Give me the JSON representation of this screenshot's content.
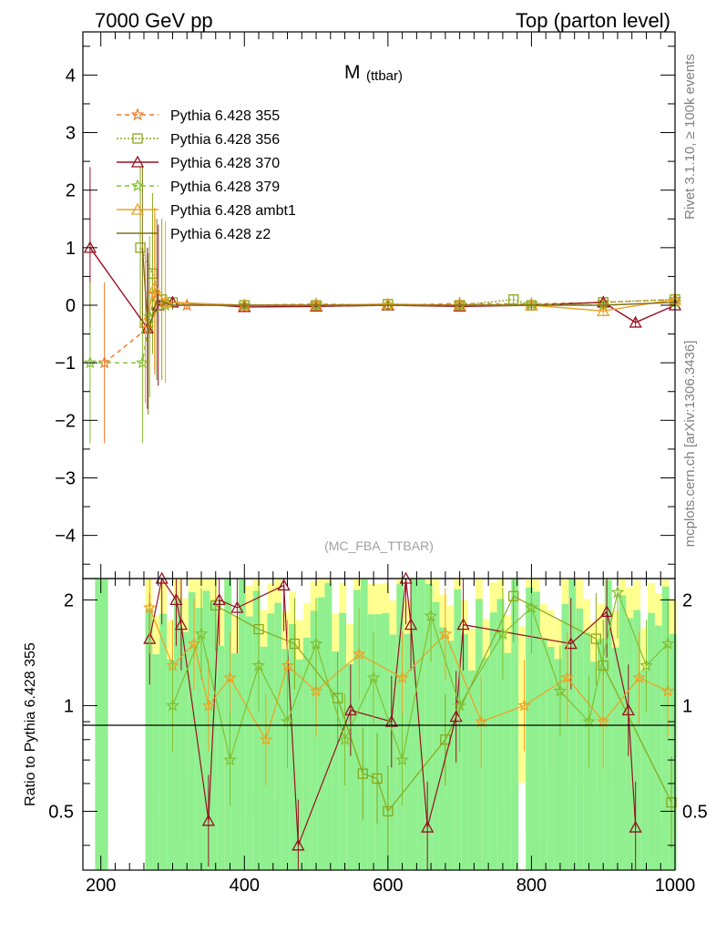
{
  "header": {
    "left": "7000 GeV pp",
    "right": "Top (parton level)"
  },
  "side_text": {
    "upper": "Rivet 3.1.10, ≥ 100k events",
    "lower": "mcplots.cern.ch [arXiv:1306.3436]"
  },
  "chart_data": [
    {
      "type": "line",
      "title_main": "M",
      "title_sub": "(ttbar)",
      "analysis_tag": "(MC_FBA_TTBAR)",
      "xlim": [
        175,
        1000
      ],
      "ylim": [
        -4.75,
        4.75
      ],
      "yticks": [
        -4,
        -3,
        -2,
        -1,
        0,
        1,
        2,
        3,
        4
      ],
      "xticks": [
        200,
        400,
        600,
        800,
        1000
      ],
      "legend_position": "top-left",
      "series": [
        {
          "name": "Pythia 6.428 355",
          "color": "#f07828",
          "dash": "5,4",
          "marker": "star",
          "points": [
            [
              205,
              -1
            ],
            [
              265,
              -0.4
            ],
            [
              275,
              0.2
            ],
            [
              290,
              0.05
            ],
            [
              320,
              0.0
            ],
            [
              400,
              0.0
            ],
            [
              500,
              0.02
            ],
            [
              600,
              0.0
            ],
            [
              700,
              0.03
            ],
            [
              800,
              0.02
            ],
            [
              900,
              0.05
            ],
            [
              1000,
              0.1
            ]
          ]
        },
        {
          "name": "Pythia 6.428 356",
          "color": "#88a818",
          "dash": "2,2",
          "marker": "square",
          "points": [
            [
              255,
              1
            ],
            [
              272,
              0.55
            ],
            [
              285,
              0.1
            ],
            [
              300,
              0.05
            ],
            [
              400,
              0.0
            ],
            [
              500,
              0.0
            ],
            [
              600,
              0.02
            ],
            [
              700,
              0.0
            ],
            [
              775,
              0.1
            ],
            [
              800,
              0.0
            ],
            [
              900,
              0.05
            ],
            [
              1000,
              0.1
            ]
          ]
        },
        {
          "name": "Pythia 6.428 370",
          "color": "#981020",
          "dash": "",
          "marker": "triangle",
          "points": [
            [
              185,
              1
            ],
            [
              265,
              -0.4
            ],
            [
              280,
              0.0
            ],
            [
              300,
              0.05
            ],
            [
              400,
              -0.03
            ],
            [
              500,
              -0.02
            ],
            [
              600,
              0.0
            ],
            [
              700,
              -0.02
            ],
            [
              800,
              0.0
            ],
            [
              900,
              0.05
            ],
            [
              945,
              -0.3
            ],
            [
              1000,
              0.0
            ]
          ]
        },
        {
          "name": "Pythia 6.428 379",
          "color": "#80c030",
          "dash": "5,4",
          "marker": "star",
          "points": [
            [
              185,
              -1
            ],
            [
              258,
              -1
            ],
            [
              268,
              -0.2
            ],
            [
              290,
              0.0
            ],
            [
              400,
              0.0
            ],
            [
              500,
              0.0
            ],
            [
              600,
              0.0
            ],
            [
              700,
              0.0
            ],
            [
              800,
              0.02
            ],
            [
              900,
              0.0
            ],
            [
              1000,
              0.05
            ]
          ]
        },
        {
          "name": "Pythia 6.428 ambt1",
          "color": "#f0a020",
          "dash": "",
          "marker": "triangle",
          "points": [
            [
              262,
              -0.3
            ],
            [
              275,
              0.3
            ],
            [
              290,
              0.05
            ],
            [
              400,
              0.0
            ],
            [
              500,
              0.0
            ],
            [
              600,
              0.02
            ],
            [
              700,
              0.0
            ],
            [
              800,
              0.0
            ],
            [
              900,
              -0.1
            ],
            [
              1000,
              0.1
            ]
          ]
        },
        {
          "name": "Pythia 6.428 z2",
          "color": "#807018",
          "dash": "",
          "marker": "none",
          "points": [
            [
              258,
              1.0
            ],
            [
              266,
              -0.5
            ],
            [
              278,
              0.1
            ],
            [
              300,
              0.0
            ],
            [
              400,
              0.0
            ],
            [
              500,
              0.0
            ],
            [
              600,
              0.0
            ],
            [
              700,
              0.0
            ],
            [
              800,
              0.0
            ],
            [
              900,
              0.0
            ],
            [
              1000,
              0.05
            ]
          ]
        }
      ]
    },
    {
      "type": "line",
      "ylabel": "Ratio to Pythia 6.428 355",
      "xlim": [
        175,
        1000
      ],
      "ylim": [
        0.34,
        2.3
      ],
      "yticks": [
        0.5,
        1,
        2
      ],
      "ytick_labels": [
        "0.5",
        "1",
        "2"
      ],
      "xticks": [
        200,
        400,
        600,
        800,
        1000
      ],
      "reference_line": 1,
      "band_colors": {
        "yellow": "#ffff90",
        "green": "#90f090"
      },
      "series": [
        {
          "name": "Pythia 6.428 356",
          "color": "#88a818",
          "points": [
            [
              360,
              1.93
            ],
            [
              420,
              1.65
            ],
            [
              470,
              1.5
            ],
            [
              530,
              1.05
            ],
            [
              565,
              0.64
            ],
            [
              585,
              0.62
            ],
            [
              600,
              0.5
            ],
            [
              680,
              0.8
            ],
            [
              775,
              2.05
            ],
            [
              890,
              1.55
            ],
            [
              900,
              1.3
            ],
            [
              995,
              0.53
            ]
          ]
        },
        {
          "name": "Pythia 6.428 370",
          "color": "#981020",
          "points": [
            [
              268,
              1.55
            ],
            [
              285,
              2.3
            ],
            [
              305,
              2.0
            ],
            [
              312,
              1.7
            ],
            [
              350,
              0.47
            ],
            [
              365,
              2.0
            ],
            [
              390,
              1.9
            ],
            [
              455,
              2.2
            ],
            [
              475,
              0.4
            ],
            [
              548,
              0.97
            ],
            [
              605,
              0.9
            ],
            [
              625,
              2.3
            ],
            [
              632,
              1.7
            ],
            [
              655,
              0.45
            ],
            [
              695,
              0.93
            ],
            [
              705,
              1.7
            ],
            [
              855,
              1.5
            ],
            [
              905,
              1.85
            ],
            [
              935,
              0.97
            ],
            [
              945,
              0.45
            ]
          ]
        },
        {
          "name": "Pythia 6.428 ambt1",
          "color": "#f0a020",
          "points": [
            [
              268,
              1.9
            ],
            [
              300,
              1.3
            ],
            [
              330,
              1.5
            ],
            [
              350,
              1.0
            ],
            [
              380,
              1.2
            ],
            [
              430,
              0.8
            ],
            [
              460,
              1.3
            ],
            [
              500,
              1.1
            ],
            [
              560,
              1.4
            ],
            [
              620,
              1.2
            ],
            [
              680,
              1.6
            ],
            [
              730,
              0.9
            ],
            [
              790,
              1.0
            ],
            [
              850,
              1.2
            ],
            [
              900,
              0.9
            ],
            [
              950,
              1.2
            ],
            [
              990,
              1.1
            ]
          ]
        },
        {
          "name": "Pythia 6.428 379",
          "color": "#80c030",
          "points": [
            [
              300,
              1.0
            ],
            [
              340,
              1.6
            ],
            [
              380,
              0.7
            ],
            [
              420,
              1.3
            ],
            [
              460,
              0.9
            ],
            [
              500,
              1.5
            ],
            [
              540,
              0.8
            ],
            [
              580,
              1.2
            ],
            [
              620,
              0.7
            ],
            [
              660,
              1.8
            ],
            [
              700,
              1.0
            ],
            [
              760,
              1.6
            ],
            [
              800,
              1.9
            ],
            [
              840,
              1.1
            ],
            [
              880,
              0.9
            ],
            [
              920,
              2.1
            ],
            [
              960,
              1.3
            ],
            [
              990,
              1.5
            ]
          ]
        }
      ]
    }
  ]
}
